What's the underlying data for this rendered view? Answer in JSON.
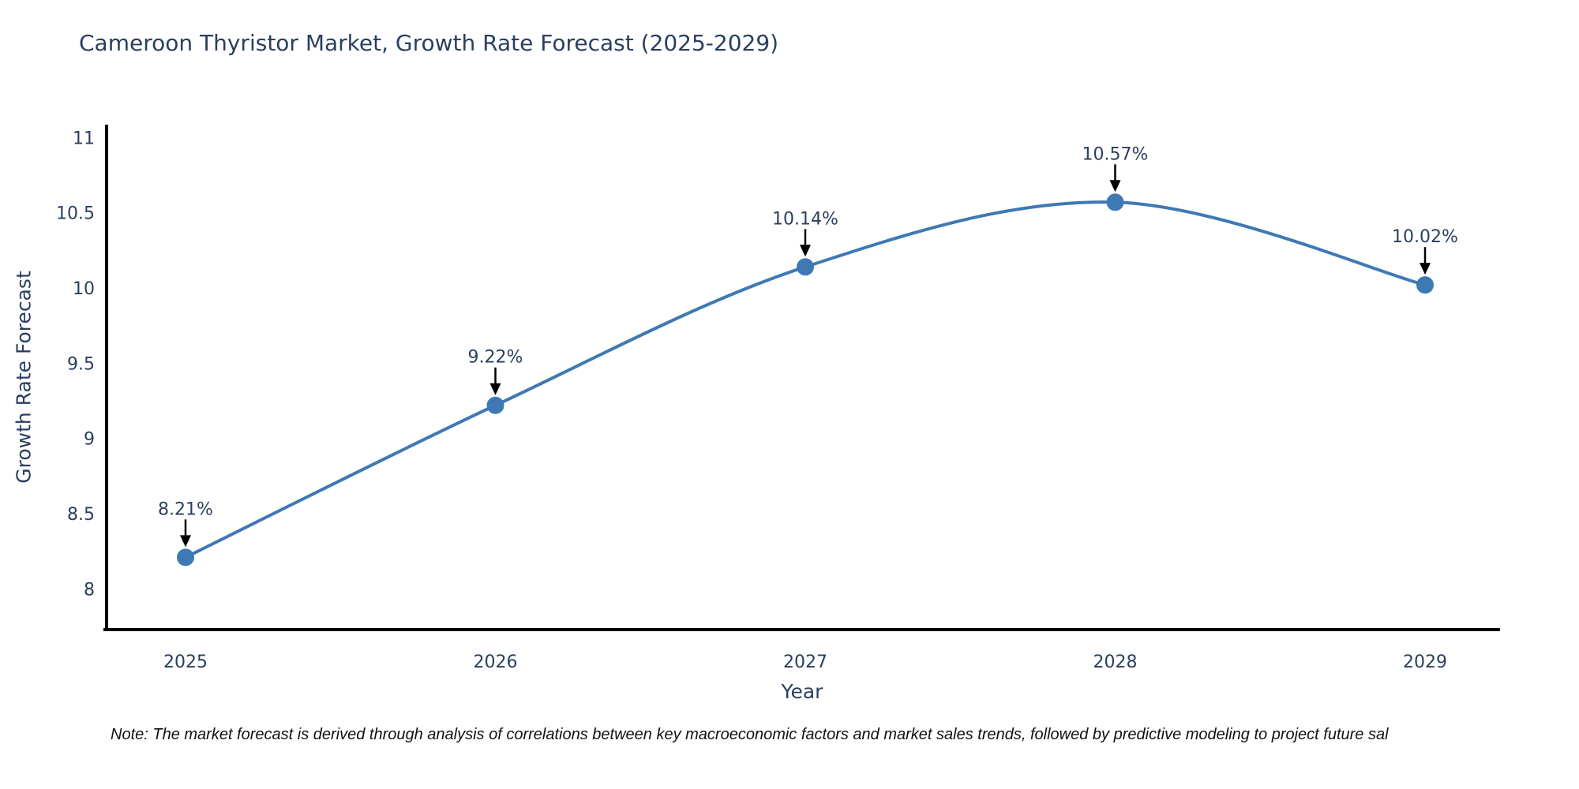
{
  "figure": {
    "title": "Cameroon Thyristor Market, Growth Rate Forecast (2025-2029)",
    "note": "Note: The market forecast is derived through analysis of correlations between key macroeconomic factors and market sales trends, followed by predictive modeling to project future sal"
  },
  "chart_data": {
    "type": "line",
    "title": "Cameroon Thyristor Market, Growth Rate Forecast (2025-2029)",
    "xlabel": "Year",
    "ylabel": "Growth Rate Forecast",
    "x": [
      2025,
      2026,
      2027,
      2028,
      2029
    ],
    "values": [
      8.21,
      9.22,
      10.14,
      10.57,
      10.02
    ],
    "point_labels": [
      "8.21%",
      "9.22%",
      "10.14%",
      "10.57%",
      "10.02%"
    ],
    "yticks": [
      8,
      8.5,
      9,
      9.5,
      10,
      10.5,
      11
    ],
    "ylim": [
      7.72,
      11.09
    ],
    "grid": false,
    "legend": "none",
    "line_shape": "spline",
    "marker": "circle",
    "annotation_style": "value-above-with-down-arrow",
    "colors": {
      "line": "#3e79b4",
      "marker": "#3e79b4",
      "axis": "#000000",
      "tick_text": "#2a3f5f",
      "annotation_text": "#2a3f5f",
      "annotation_arrow": "#000000",
      "title_text": "#2a3f5f",
      "background": "#ffffff"
    }
  }
}
